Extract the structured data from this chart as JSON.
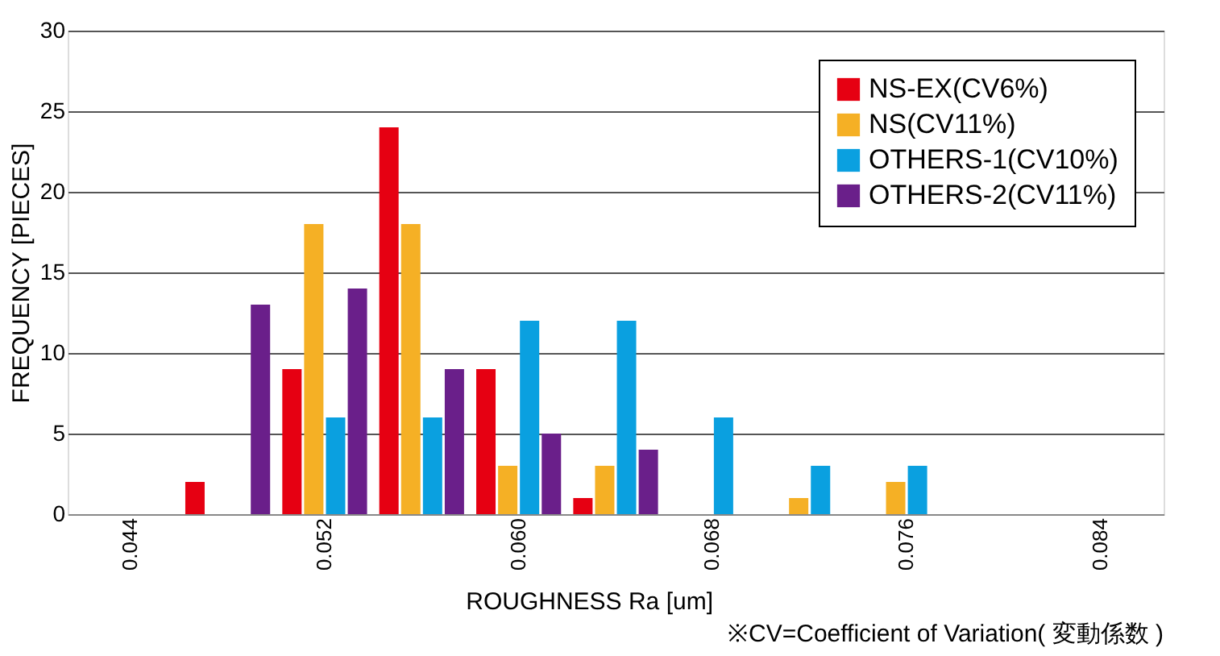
{
  "chart_data": {
    "type": "bar",
    "categories": [
      "0.044",
      null,
      "0.052",
      null,
      "0.060",
      null,
      "0.068",
      null,
      "0.076",
      null,
      "0.084"
    ],
    "series": [
      {
        "name": "NS-EX(CV6%)",
        "color": "#e60012",
        "values": [
          null,
          2,
          9,
          24,
          9,
          1,
          null,
          null,
          null,
          null,
          null
        ]
      },
      {
        "name": "NS(CV11%)",
        "color": "#f5b025",
        "values": [
          null,
          null,
          18,
          18,
          3,
          3,
          null,
          1,
          2,
          null,
          null
        ]
      },
      {
        "name": "OTHERS-1(CV10%)",
        "color": "#0aa0e0",
        "values": [
          null,
          null,
          6,
          6,
          12,
          12,
          6,
          3,
          3,
          null,
          null
        ]
      },
      {
        "name": "OTHERS-2(CV11%)",
        "color": "#6a1f8a",
        "values": [
          null,
          13,
          14,
          9,
          5,
          4,
          null,
          null,
          null,
          null,
          null
        ]
      }
    ],
    "xlabel": "ROUGHNESS Ra [um]",
    "ylabel": "FREQUENCY [PIECES]",
    "ylim": [
      0,
      30
    ],
    "yticks": [
      0,
      5,
      10,
      15,
      20,
      25,
      30
    ],
    "grid": "y",
    "legend": "top right",
    "annotations": [
      "※CV=Coefficient of Variation( 変動係数 )"
    ]
  }
}
